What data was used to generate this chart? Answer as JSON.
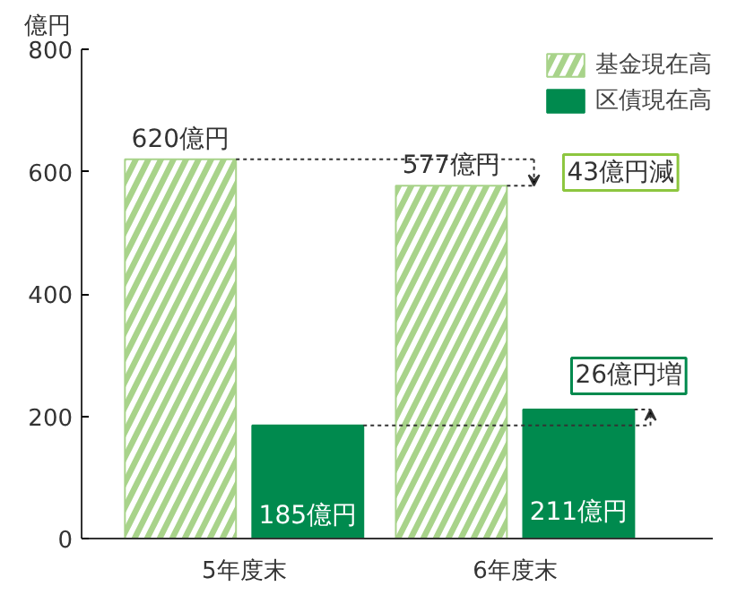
{
  "chart_data": {
    "type": "bar",
    "ylabel": "億円",
    "categories": [
      "5年度末",
      "6年度末"
    ],
    "series": [
      {
        "name": "基金現在高",
        "color": "#a8d38a",
        "values": [
          620,
          577
        ],
        "value_labels": [
          "620億円",
          "577億円"
        ]
      },
      {
        "name": "区債現在高",
        "color": "#008a4e",
        "values": [
          185,
          211
        ],
        "value_labels": [
          "185億円",
          "211億円"
        ]
      }
    ],
    "ylim": [
      0,
      800
    ],
    "yticks": [
      0,
      200,
      400,
      600,
      800
    ],
    "grid": false,
    "legend": "top right",
    "annotations": [
      "43億円減",
      "26億円増"
    ],
    "ref_lines": [
      {
        "axis": "y",
        "value": 620,
        "line_style": "dotted",
        "color": "#333333"
      },
      {
        "axis": "y",
        "value": 185,
        "line_style": "dotted",
        "color": "#333333"
      }
    ]
  }
}
